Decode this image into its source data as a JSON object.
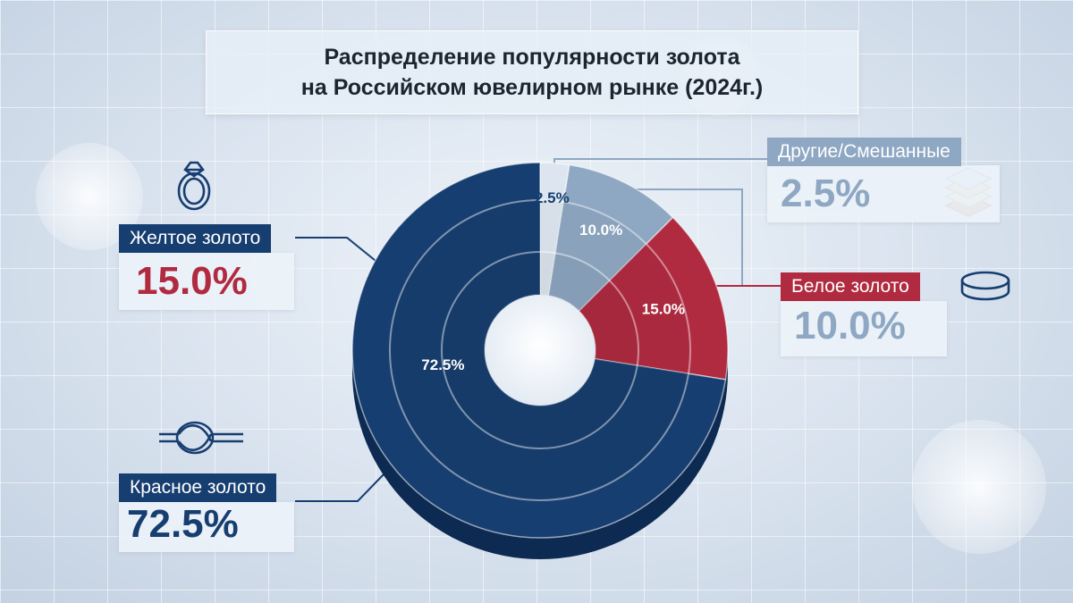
{
  "title": {
    "line1": "Распределение популярности золота",
    "line2": "на Российском ювелирном рынке (2024г.)"
  },
  "chart_data": {
    "type": "pie",
    "variant": "nested-donut",
    "title": "Распределение популярности золота на Российском ювелирном рынке (2024г.)",
    "slices": [
      {
        "name": "Другие/Смешанные",
        "value": 2.5,
        "label": "2.5%",
        "color": "#dde6f0"
      },
      {
        "name": "Белое золото",
        "value": 10.0,
        "label": "10.0%",
        "color": "#8ea7c2"
      },
      {
        "name": "Желтое золото",
        "value": 15.0,
        "label": "15.0%",
        "color": "#b02a40"
      },
      {
        "name": "Красное золото",
        "value": 72.5,
        "label": "72.5%",
        "color": "#173e70"
      }
    ]
  },
  "callouts": {
    "yellow": {
      "label": "Желтое золото",
      "value": "15.0%",
      "icon": "ring-icon",
      "label_bg": "#173e70",
      "value_color": "#b02a40"
    },
    "red": {
      "label": "Красное золото",
      "value": "72.5%",
      "icon": "knot-icon",
      "label_bg": "#173e70",
      "value_color": "#173e70"
    },
    "other": {
      "label": "Другие/Смешанные",
      "value": "2.5%",
      "icon": "layers-icon",
      "label_bg": "#8ea7c2",
      "value_color": "#8ea7c2"
    },
    "white": {
      "label": "Белое золото",
      "value": "10.0%",
      "icon": "band-ring-icon",
      "label_bg": "#b02a40",
      "value_color": "#8ea7c2"
    }
  }
}
